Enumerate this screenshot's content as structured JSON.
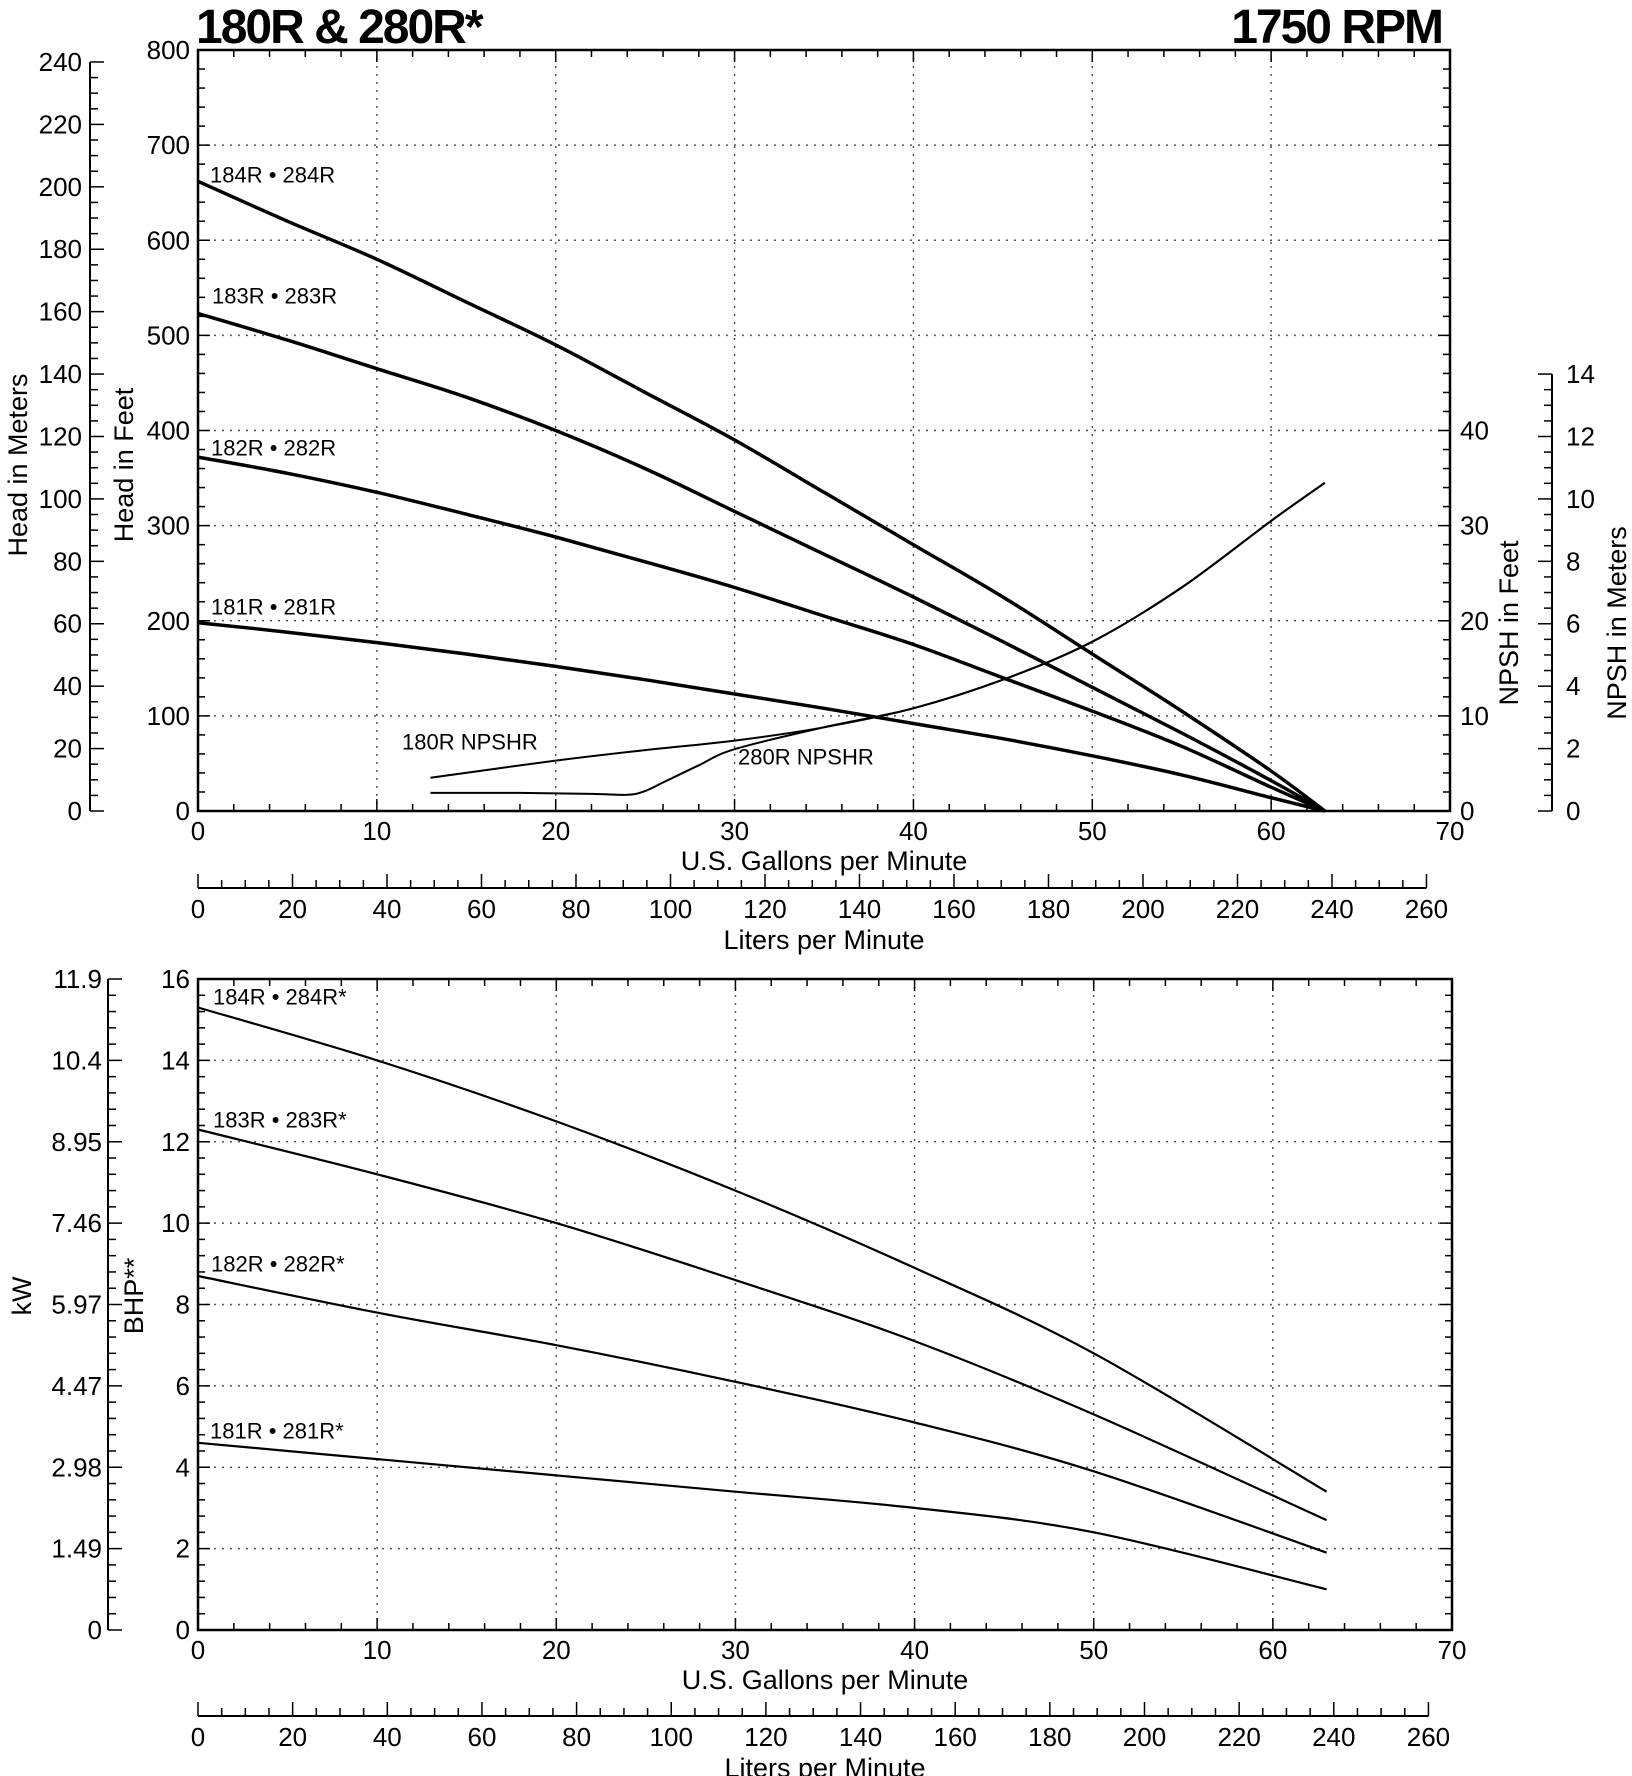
{
  "header": {
    "title_left": "180R & 280R*",
    "title_right": "1750 RPM"
  },
  "colors": {
    "ink": "#000000",
    "grid": "#555555",
    "background": "#ffffff"
  },
  "chart_data": [
    {
      "type": "line",
      "panel": "top",
      "title": "",
      "xlabel": "U.S. Gallons per Minute",
      "xlabel2": "Liters per Minute",
      "ylabel": "Head in Feet",
      "ylabel_meters": "Head in Meters",
      "ylabel_right": "NPSH in Feet",
      "ylabel_right_meters": "NPSH in Meters",
      "xlim": [
        0,
        70
      ],
      "ylim": [
        0,
        800
      ],
      "xticks": [
        "0",
        "10",
        "20",
        "30",
        "40",
        "50",
        "60",
        "70"
      ],
      "yticks": [
        "0",
        "100",
        "200",
        "300",
        "400",
        "500",
        "600",
        "700",
        "800"
      ],
      "meters_ticks": [
        "0",
        "20",
        "40",
        "60",
        "80",
        "100",
        "120",
        "140",
        "160",
        "180",
        "200",
        "220",
        "240"
      ],
      "npsh_ft_ticks": [
        "0",
        "10",
        "20",
        "30",
        "40"
      ],
      "npsh_m_ticks": [
        "0",
        "2",
        "4",
        "6",
        "8",
        "10",
        "12",
        "14"
      ],
      "lpm_ticks": [
        "0",
        "20",
        "40",
        "60",
        "80",
        "100",
        "120",
        "140",
        "160",
        "180",
        "200",
        "220",
        "240",
        "260"
      ],
      "grid": true,
      "series": [
        {
          "name": "184R • 284R",
          "axis": "head",
          "x": [
            0,
            5,
            10,
            15,
            20,
            25,
            30,
            35,
            40,
            45,
            50,
            55,
            60,
            63
          ],
          "y": [
            662,
            620,
            580,
            535,
            490,
            440,
            390,
            335,
            280,
            225,
            165,
            105,
            42,
            0
          ]
        },
        {
          "name": "183R • 283R",
          "axis": "head",
          "x": [
            0,
            5,
            10,
            15,
            20,
            25,
            30,
            35,
            40,
            45,
            50,
            55,
            60,
            63
          ],
          "y": [
            523,
            495,
            465,
            435,
            400,
            360,
            315,
            270,
            225,
            178,
            130,
            82,
            32,
            0
          ]
        },
        {
          "name": "182R • 282R",
          "axis": "head",
          "x": [
            0,
            5,
            10,
            15,
            20,
            25,
            30,
            35,
            40,
            45,
            50,
            55,
            60,
            63
          ],
          "y": [
            372,
            355,
            335,
            312,
            288,
            262,
            235,
            205,
            175,
            140,
            105,
            68,
            25,
            0
          ]
        },
        {
          "name": "181R • 281R",
          "axis": "head",
          "x": [
            0,
            5,
            10,
            15,
            20,
            25,
            30,
            35,
            40,
            45,
            50,
            55,
            60,
            63
          ],
          "y": [
            198,
            188,
            177,
            165,
            152,
            138,
            123,
            108,
            92,
            76,
            58,
            38,
            14,
            0
          ]
        },
        {
          "name": "180R NPSHR",
          "axis": "npsh",
          "x": [
            13,
            20,
            25,
            30,
            35,
            40,
            45,
            50,
            55,
            60,
            63
          ],
          "y": [
            3.5,
            5.3,
            6.4,
            7.4,
            8.8,
            10.8,
            13.8,
            17.8,
            23.5,
            30.5,
            34.5
          ]
        },
        {
          "name": "280R NPSHR",
          "axis": "npsh",
          "x": [
            13,
            18,
            22,
            24,
            25,
            26,
            28,
            30,
            35,
            40,
            45,
            50,
            55,
            60,
            63
          ],
          "y": [
            1.9,
            1.9,
            1.8,
            1.7,
            2.1,
            3.0,
            4.8,
            6.5,
            8.8,
            10.8,
            13.8,
            17.8,
            23.5,
            30.5,
            34.5
          ]
        }
      ]
    },
    {
      "type": "line",
      "panel": "bottom",
      "title": "",
      "xlabel": "U.S. Gallons per Minute",
      "xlabel2": "Liters per Minute",
      "ylabel": "BHP**",
      "ylabel_kw": "kW",
      "xlim": [
        0,
        70
      ],
      "ylim": [
        0,
        16
      ],
      "xticks": [
        "0",
        "10",
        "20",
        "30",
        "40",
        "50",
        "60",
        "70"
      ],
      "yticks": [
        "0",
        "2",
        "4",
        "6",
        "8",
        "10",
        "12",
        "14",
        "16"
      ],
      "kw_ticks": [
        "0",
        "1.49",
        "2.98",
        "4.47",
        "5.97",
        "7.46",
        "8.95",
        "10.4",
        "11.9"
      ],
      "lpm_ticks": [
        "0",
        "20",
        "40",
        "60",
        "80",
        "100",
        "120",
        "140",
        "160",
        "180",
        "200",
        "220",
        "240",
        "260"
      ],
      "grid": true,
      "series": [
        {
          "name": "184R • 284R*",
          "x": [
            0,
            10,
            20,
            30,
            40,
            50,
            63
          ],
          "y": [
            15.3,
            14.0,
            12.5,
            10.8,
            8.9,
            6.8,
            3.4
          ]
        },
        {
          "name": "183R • 283R*",
          "x": [
            0,
            10,
            20,
            30,
            40,
            50,
            63
          ],
          "y": [
            12.3,
            11.2,
            10.0,
            8.6,
            7.1,
            5.3,
            2.7
          ]
        },
        {
          "name": "182R • 282R*",
          "x": [
            0,
            10,
            20,
            30,
            40,
            50,
            63
          ],
          "y": [
            8.7,
            7.8,
            7.0,
            6.1,
            5.1,
            3.9,
            1.9
          ]
        },
        {
          "name": "181R • 281R*",
          "x": [
            0,
            10,
            20,
            30,
            40,
            50,
            63
          ],
          "y": [
            4.6,
            4.2,
            3.8,
            3.4,
            3.0,
            2.4,
            1.0
          ]
        }
      ]
    }
  ]
}
